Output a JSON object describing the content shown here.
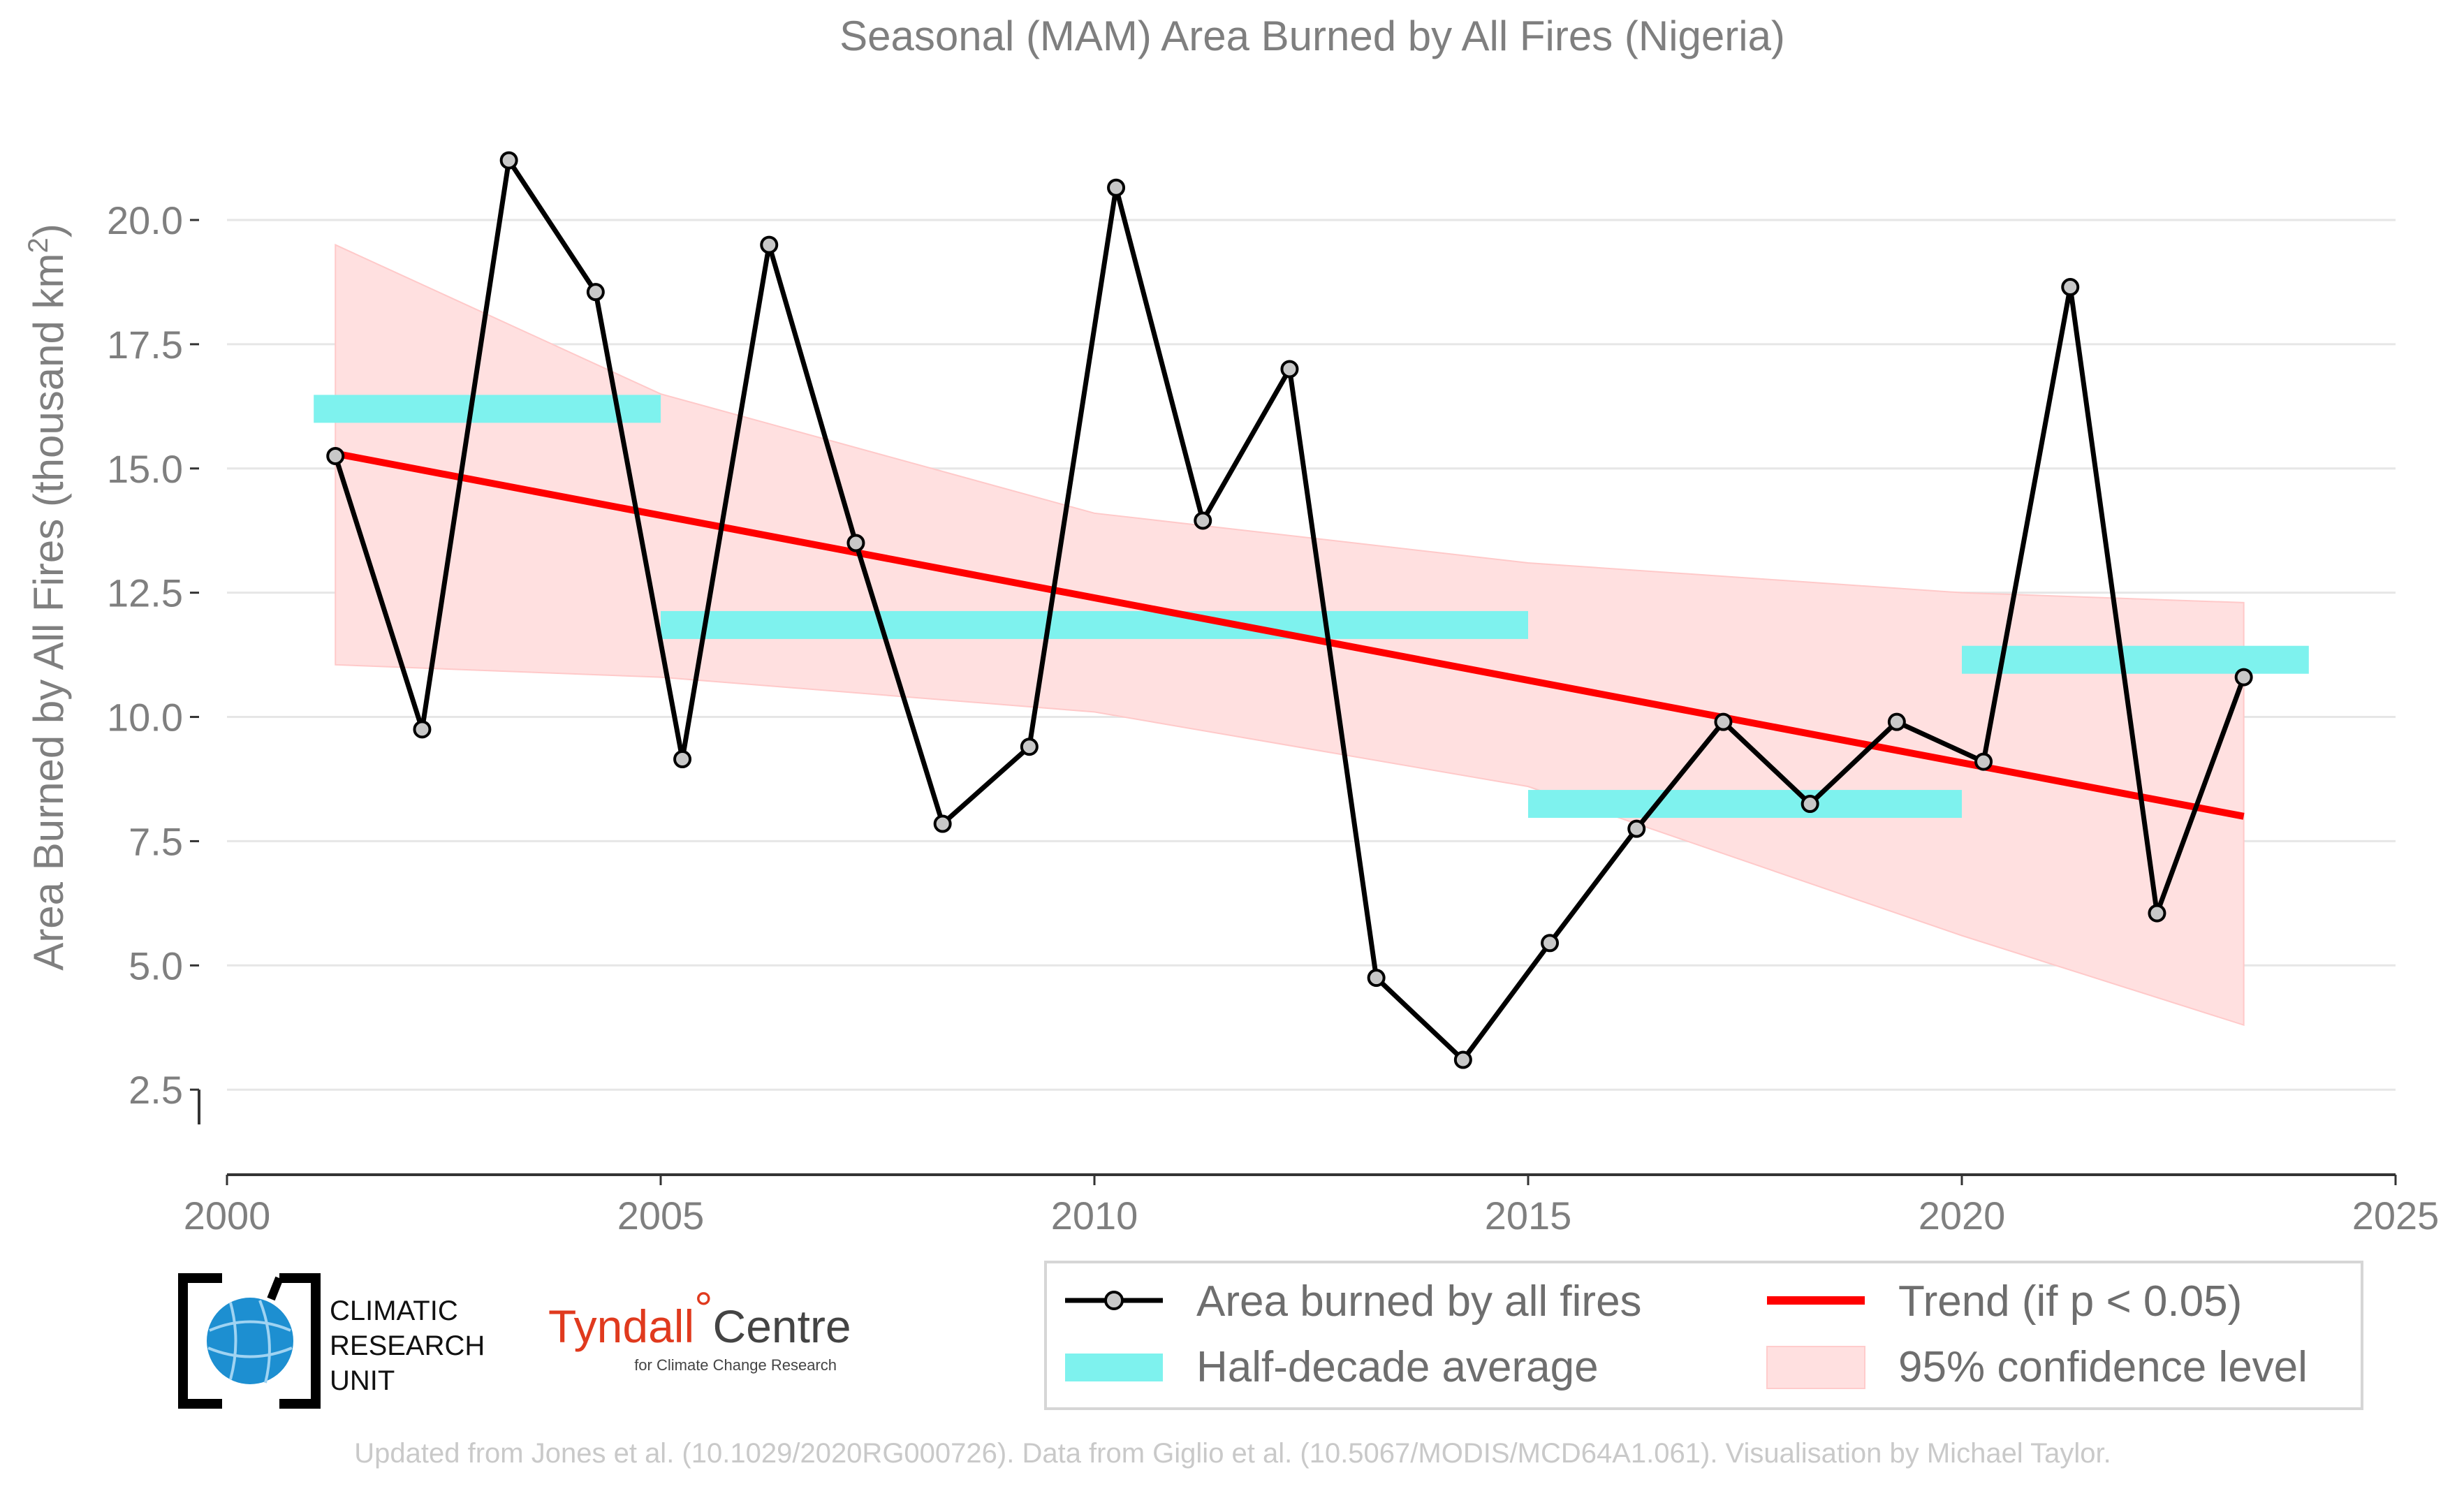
{
  "chart_data": {
    "type": "line",
    "title": "Seasonal (MAM) Area Burned by All Fires (Nigeria)",
    "xlabel": "",
    "ylabel": "Area Burned by All Fires (thousand km",
    "ylabel_sup": "2",
    "ylabel_close": ")",
    "xlim": [
      2000,
      2025
    ],
    "ylim": [
      1.8,
      22.6
    ],
    "xticks": [
      2000,
      2005,
      2010,
      2015,
      2020,
      2025
    ],
    "yticks": [
      2.5,
      5.0,
      7.5,
      10.0,
      12.5,
      15.0,
      17.5,
      20.0
    ],
    "grid": "horizontal",
    "legend_position": "bottom-right",
    "series": [
      {
        "name": "Area burned by all fires",
        "color": "#000000",
        "x": [
          2001.25,
          2002.25,
          2003.25,
          2004.25,
          2005.25,
          2006.25,
          2007.25,
          2008.25,
          2009.25,
          2010.25,
          2011.25,
          2012.25,
          2013.25,
          2014.25,
          2015.25,
          2016.25,
          2017.25,
          2018.25,
          2019.25,
          2020.25,
          2021.25,
          2022.25,
          2023.25
        ],
        "y": [
          15.25,
          9.75,
          21.2,
          18.55,
          9.15,
          19.5,
          13.5,
          7.85,
          9.4,
          20.65,
          13.95,
          17.0,
          4.75,
          3.1,
          5.45,
          7.75,
          9.9,
          8.25,
          9.9,
          9.1,
          18.65,
          6.05,
          10.8
        ]
      },
      {
        "name": "Trend (if p < 0.05)",
        "color": "#ff0000",
        "x": [
          2001.25,
          2023.25
        ],
        "y": [
          15.3,
          8.0
        ]
      }
    ],
    "half_decade_average": {
      "name": "Half-decade average",
      "color": "#7ef2ee",
      "segments": [
        {
          "x0": 2001.0,
          "x1": 2005.0,
          "y": 16.2
        },
        {
          "x0": 2005.0,
          "x1": 2015.0,
          "y": 11.85
        },
        {
          "x0": 2015.0,
          "x1": 2020.0,
          "y": 8.25
        },
        {
          "x0": 2020.0,
          "x1": 2024.0,
          "y": 11.15
        }
      ]
    },
    "confidence_band": {
      "name": "95% confidence level",
      "color": "#ffe0e0",
      "x": [
        2001.25,
        2005.0,
        2010.0,
        2015.0,
        2020.0,
        2023.25
      ],
      "upper": [
        19.5,
        16.5,
        14.1,
        13.1,
        12.5,
        12.3
      ],
      "lower": [
        11.05,
        10.8,
        10.1,
        8.6,
        5.6,
        3.8
      ]
    }
  },
  "legend": {
    "items": [
      {
        "label": "Area burned by all fires"
      },
      {
        "label": "Trend (if p < 0.05)"
      },
      {
        "label": "Half-decade average"
      },
      {
        "label": "95% confidence level"
      }
    ]
  },
  "logos": {
    "cru": {
      "line1": "CLIMATIC",
      "line2": "RESEARCH",
      "line3": "UNIT"
    },
    "tyndall": {
      "main": "Tyndall",
      "degree": "°",
      "centre": "Centre",
      "sub": "for Climate Change Research"
    }
  },
  "footer": {
    "text": "Updated from Jones et al. (10.1029/2020RG000726). Data from Giglio et al. (10.5067/MODIS/MCD64A1.061). Visualisation by Michael Taylor."
  },
  "colors": {
    "line": "#000000",
    "marker_fill": "#c8c8c8",
    "trend": "#ff0000",
    "half_decade": "#7ef2ee",
    "band": "#ffe0e0",
    "grid": "#e6e6e6",
    "text": "#7f7f7f"
  }
}
